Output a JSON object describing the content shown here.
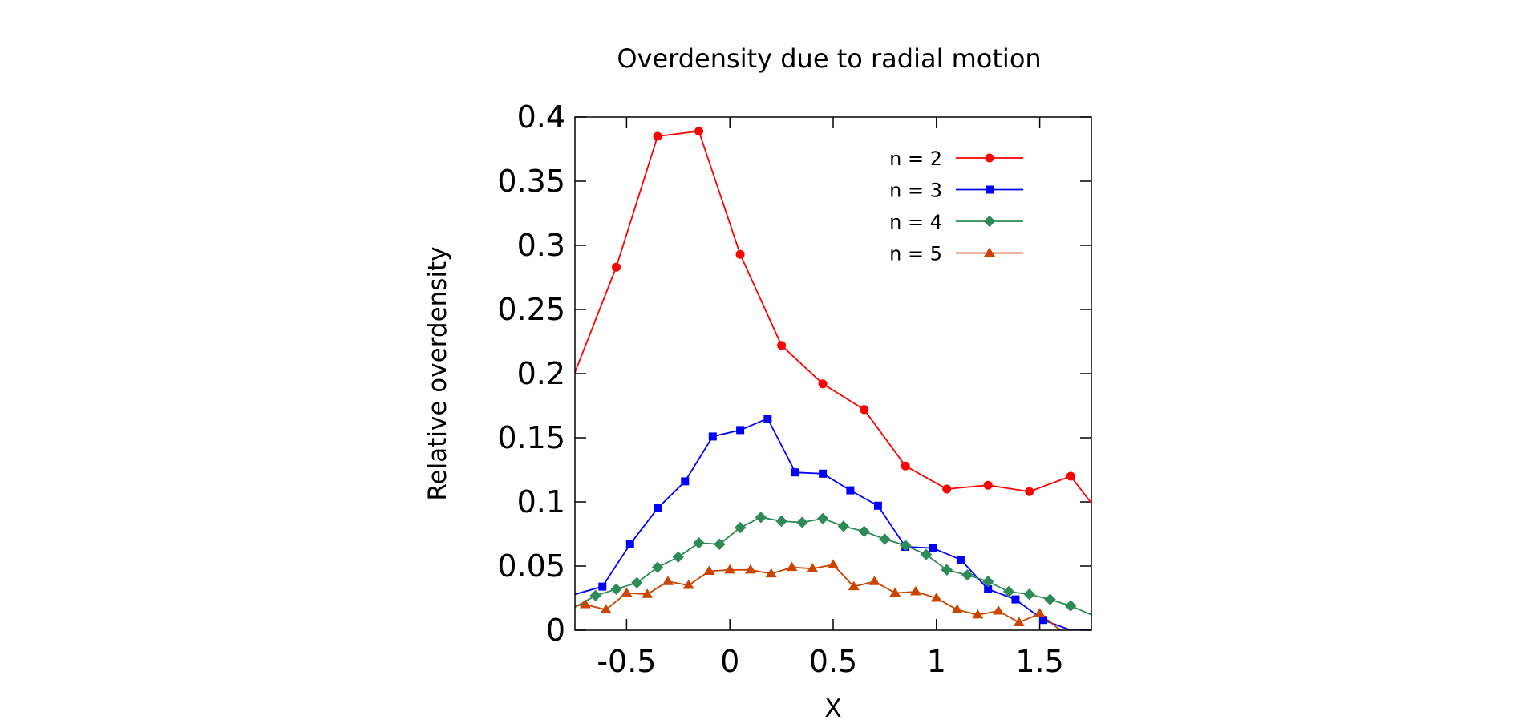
{
  "chart_data": {
    "type": "line",
    "title": "Overdensity due to radial motion",
    "xlabel": "X",
    "ylabel": "Relative overdensity",
    "xlim": [
      -0.75,
      1.75
    ],
    "ylim": [
      0,
      0.4
    ],
    "xticks": [
      -0.5,
      0,
      0.5,
      1,
      1.5
    ],
    "xtick_labels": [
      "-0.5",
      "0",
      "0.5",
      "1",
      "1.5"
    ],
    "yticks": [
      0,
      0.05,
      0.1,
      0.15,
      0.2,
      0.25,
      0.3,
      0.35,
      0.4
    ],
    "ytick_labels": [
      "0",
      "0.05",
      "0.1",
      "0.15",
      "0.2",
      "0.25",
      "0.3",
      "0.35",
      "0.4"
    ],
    "grid": false,
    "legend_position": "top-right",
    "series": [
      {
        "name": "n = 2",
        "color": "#ff0000",
        "marker": "circle",
        "x": [
          -0.75,
          -0.55,
          -0.35,
          -0.15,
          0.05,
          0.25,
          0.45,
          0.65,
          0.85,
          1.05,
          1.25,
          1.45,
          1.65,
          1.75
        ],
        "y": [
          0.201,
          0.283,
          0.385,
          0.389,
          0.293,
          0.222,
          0.192,
          0.172,
          0.128,
          0.11,
          0.113,
          0.108,
          0.12,
          0.099
        ]
      },
      {
        "name": "n = 3",
        "color": "#0000ff",
        "marker": "square",
        "x": [
          -0.75,
          -0.617,
          -0.483,
          -0.35,
          -0.217,
          -0.083,
          0.05,
          0.183,
          0.317,
          0.45,
          0.583,
          0.717,
          0.85,
          0.983,
          1.117,
          1.25,
          1.383,
          1.517,
          1.65,
          1.75
        ],
        "y": [
          0.028,
          0.034,
          0.067,
          0.095,
          0.116,
          0.151,
          0.156,
          0.165,
          0.123,
          0.122,
          0.109,
          0.097,
          0.065,
          0.064,
          0.055,
          0.032,
          0.024,
          0.008,
          0.0,
          0.0
        ]
      },
      {
        "name": "n = 4",
        "color": "#2e8b57",
        "marker": "diamond",
        "x": [
          -0.75,
          -0.65,
          -0.55,
          -0.45,
          -0.35,
          -0.25,
          -0.15,
          -0.05,
          0.05,
          0.15,
          0.25,
          0.35,
          0.45,
          0.55,
          0.65,
          0.75,
          0.85,
          0.95,
          1.05,
          1.15,
          1.25,
          1.35,
          1.45,
          1.55,
          1.65,
          1.75
        ],
        "y": [
          0.018,
          0.027,
          0.032,
          0.037,
          0.049,
          0.057,
          0.068,
          0.067,
          0.08,
          0.088,
          0.085,
          0.084,
          0.087,
          0.081,
          0.077,
          0.071,
          0.066,
          0.059,
          0.047,
          0.043,
          0.038,
          0.03,
          0.028,
          0.024,
          0.019,
          0.012
        ]
      },
      {
        "name": "n = 5",
        "color": "#cc4400",
        "marker": "triangle",
        "x": [
          -0.75,
          -0.7,
          -0.6,
          -0.5,
          -0.4,
          -0.3,
          -0.2,
          -0.1,
          0.0,
          0.1,
          0.2,
          0.3,
          0.4,
          0.5,
          0.6,
          0.7,
          0.8,
          0.9,
          1.0,
          1.1,
          1.2,
          1.3,
          1.4,
          1.5,
          1.6
        ],
        "y": [
          0.019,
          0.02,
          0.016,
          0.029,
          0.028,
          0.038,
          0.035,
          0.046,
          0.047,
          0.047,
          0.044,
          0.049,
          0.048,
          0.051,
          0.034,
          0.038,
          0.029,
          0.03,
          0.025,
          0.016,
          0.012,
          0.015,
          0.006,
          0.013,
          0.0
        ]
      }
    ]
  }
}
